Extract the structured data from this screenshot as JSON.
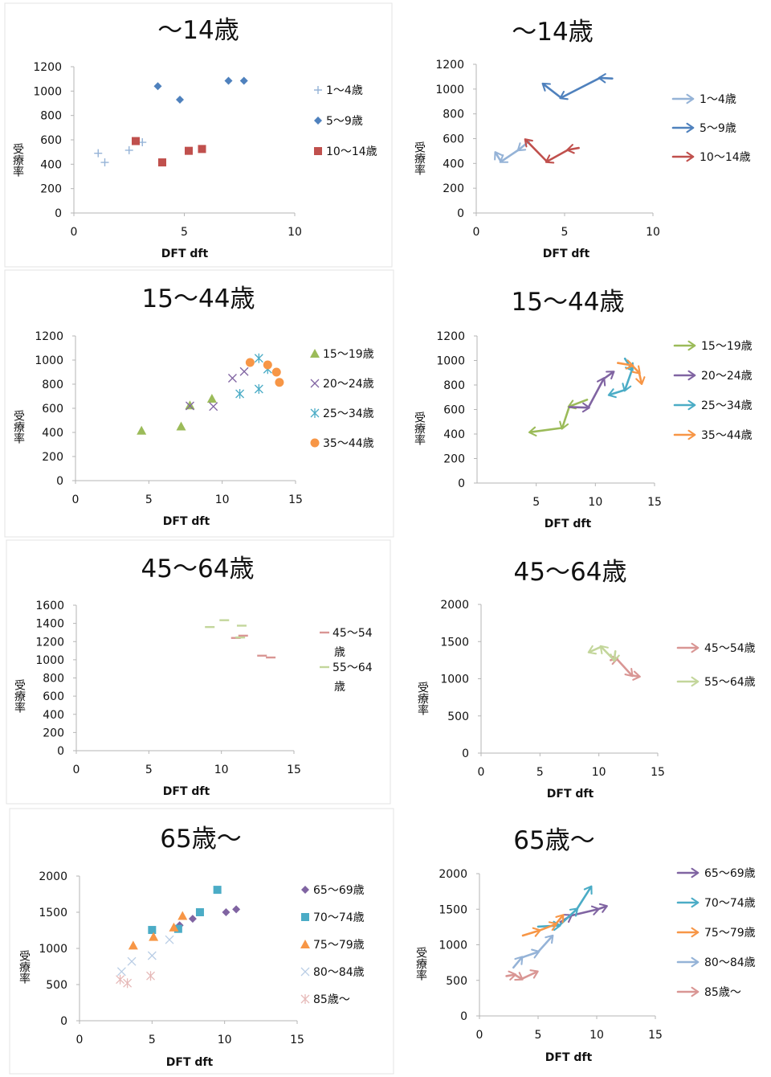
{
  "chart_data": [
    {
      "type": "scatter",
      "title": "～14歳",
      "xlabel": "DFT dft",
      "ylabel": "受療率",
      "xlim": [
        0,
        10
      ],
      "xticks": [
        0,
        5,
        10
      ],
      "ylim": [
        0,
        1200
      ],
      "yticks": [
        0,
        200,
        400,
        600,
        800,
        1000,
        1200
      ],
      "series": [
        {
          "name": "1～4歳",
          "color": "#95b3d7",
          "marker": "plus",
          "points": [
            [
              1.1,
              490
            ],
            [
              1.4,
              415
            ],
            [
              2.5,
              515
            ],
            [
              3.1,
              580
            ]
          ]
        },
        {
          "name": "5～9歳",
          "color": "#4f81bd",
          "marker": "diamond",
          "points": [
            [
              3.8,
              1040
            ],
            [
              4.8,
              930
            ],
            [
              7.0,
              1085
            ],
            [
              7.7,
              1085
            ]
          ]
        },
        {
          "name": "10～14歳",
          "color": "#c0504d",
          "marker": "square",
          "points": [
            [
              2.8,
              590
            ],
            [
              4.0,
              415
            ],
            [
              5.2,
              510
            ],
            [
              5.8,
              525
            ]
          ]
        }
      ]
    },
    {
      "type": "line",
      "title": "～14歳",
      "xlabel": "DFT dft",
      "ylabel": "受療率",
      "xlim": [
        0,
        10
      ],
      "xticks": [
        0,
        5,
        10
      ],
      "ylim": [
        0,
        1200
      ],
      "yticks": [
        0,
        200,
        400,
        600,
        800,
        1000,
        1200
      ],
      "series": [
        {
          "name": "1～4歳",
          "color": "#95b3d7",
          "marker": "arrow",
          "points": [
            [
              3.0,
              580
            ],
            [
              2.4,
              510
            ],
            [
              1.4,
              415
            ],
            [
              1.1,
              485
            ]
          ]
        },
        {
          "name": "5～9歳",
          "color": "#4f81bd",
          "marker": "arrow",
          "points": [
            [
              7.7,
              1085
            ],
            [
              7.0,
              1090
            ],
            [
              4.8,
              930
            ],
            [
              3.8,
              1040
            ]
          ]
        },
        {
          "name": "10～14歳",
          "color": "#c0504d",
          "marker": "arrow",
          "points": [
            [
              5.8,
              525
            ],
            [
              5.2,
              510
            ],
            [
              4.0,
              415
            ],
            [
              2.8,
              590
            ]
          ]
        }
      ]
    },
    {
      "type": "scatter",
      "title": "15～44歳",
      "xlabel": "DFT dft",
      "ylabel": "受療率",
      "xlim": [
        0,
        15
      ],
      "xticks": [
        0,
        5,
        10,
        15
      ],
      "ylim": [
        0,
        1200
      ],
      "yticks": [
        0,
        200,
        400,
        600,
        800,
        1000,
        1200
      ],
      "series": [
        {
          "name": "15～19歳",
          "color": "#9bbb59",
          "marker": "triangle",
          "points": [
            [
              4.5,
              415
            ],
            [
              7.2,
              450
            ],
            [
              7.8,
              625
            ],
            [
              9.3,
              680
            ]
          ]
        },
        {
          "name": "20～24歳",
          "color": "#8064a2",
          "marker": "cross",
          "points": [
            [
              7.8,
              620
            ],
            [
              9.4,
              615
            ],
            [
              10.7,
              850
            ],
            [
              11.5,
              905
            ]
          ]
        },
        {
          "name": "25～34歳",
          "color": "#4bacc6",
          "marker": "star",
          "points": [
            [
              11.2,
              720
            ],
            [
              12.5,
              760
            ],
            [
              13.1,
              925
            ],
            [
              12.5,
              1015
            ]
          ]
        },
        {
          "name": "35～44歳",
          "color": "#f79646",
          "marker": "circle",
          "points": [
            [
              11.9,
              980
            ],
            [
              13.1,
              960
            ],
            [
              13.7,
              900
            ],
            [
              13.9,
              815
            ]
          ]
        }
      ]
    },
    {
      "type": "line",
      "title": "15～44歳",
      "xlabel": "DFT dft",
      "ylabel": "受療率",
      "xlim": [
        0,
        15
      ],
      "xticks": [
        5,
        10,
        15
      ],
      "ylim": [
        0,
        1200
      ],
      "yticks": [
        0,
        200,
        400,
        600,
        800,
        1000,
        1200
      ],
      "series": [
        {
          "name": "15～19歳",
          "color": "#9bbb59",
          "marker": "arrow",
          "points": [
            [
              9.3,
              680
            ],
            [
              7.8,
              625
            ],
            [
              7.2,
              450
            ],
            [
              4.5,
              415
            ]
          ]
        },
        {
          "name": "20～24歳",
          "color": "#8064a2",
          "marker": "arrow",
          "points": [
            [
              7.8,
              620
            ],
            [
              9.4,
              615
            ],
            [
              10.7,
              850
            ],
            [
              11.5,
              905
            ]
          ]
        },
        {
          "name": "25～34歳",
          "color": "#4bacc6",
          "marker": "arrow",
          "points": [
            [
              12.5,
              1015
            ],
            [
              13.1,
              925
            ],
            [
              12.5,
              760
            ],
            [
              11.2,
              720
            ]
          ]
        },
        {
          "name": "35～44歳",
          "color": "#f79646",
          "marker": "arrow",
          "points": [
            [
              11.9,
              980
            ],
            [
              13.1,
              960
            ],
            [
              13.7,
              900
            ],
            [
              13.9,
              815
            ]
          ]
        }
      ]
    },
    {
      "type": "scatter",
      "title": "45～64歳",
      "xlabel": "DFT dft",
      "ylabel": "受療率",
      "xlim": [
        0,
        15
      ],
      "xticks": [
        0,
        5,
        10,
        15
      ],
      "ylim": [
        0,
        1600
      ],
      "yticks": [
        0,
        200,
        400,
        600,
        800,
        1000,
        1200,
        1400,
        1600
      ],
      "series": [
        {
          "name": "45～54歳",
          "color": "#d99694",
          "marker": "dash",
          "points": [
            [
              11.0,
              1240
            ],
            [
              11.5,
              1265
            ],
            [
              12.8,
              1045
            ],
            [
              13.4,
              1025
            ]
          ]
        },
        {
          "name": "55～64歳",
          "color": "#c3d69b",
          "marker": "dash",
          "points": [
            [
              9.2,
              1360
            ],
            [
              10.2,
              1435
            ],
            [
              11.3,
              1245
            ],
            [
              11.4,
              1375
            ]
          ]
        }
      ]
    },
    {
      "type": "line",
      "title": "45～64歳",
      "xlabel": "DFT dft",
      "ylabel": "受療率",
      "xlim": [
        0,
        15
      ],
      "xticks": [
        0,
        5,
        10,
        15
      ],
      "ylim": [
        0,
        2000
      ],
      "yticks": [
        0,
        500,
        1000,
        1500,
        2000
      ],
      "series": [
        {
          "name": "45～54歳",
          "color": "#d99694",
          "marker": "arrow",
          "points": [
            [
              11.0,
              1250
            ],
            [
              11.5,
              1270
            ],
            [
              12.8,
              1045
            ],
            [
              13.4,
              1030
            ]
          ]
        },
        {
          "name": "55～64歳",
          "color": "#c3d69b",
          "marker": "arrow",
          "points": [
            [
              11.4,
              1370
            ],
            [
              11.3,
              1250
            ],
            [
              10.2,
              1430
            ],
            [
              9.2,
              1360
            ]
          ]
        }
      ]
    },
    {
      "type": "scatter",
      "title": "65歳～",
      "xlabel": "DFT dft",
      "ylabel": "受療率",
      "xlim": [
        0,
        15
      ],
      "xticks": [
        0,
        5,
        10,
        15
      ],
      "ylim": [
        0,
        2000
      ],
      "yticks": [
        0,
        500,
        1000,
        1500,
        2000
      ],
      "series": [
        {
          "name": "65～69歳",
          "color": "#8064a2",
          "marker": "diamond",
          "points": [
            [
              6.9,
              1320
            ],
            [
              7.8,
              1410
            ],
            [
              10.1,
              1500
            ],
            [
              10.8,
              1540
            ]
          ]
        },
        {
          "name": "70～74歳",
          "color": "#4bacc6",
          "marker": "square",
          "points": [
            [
              5.0,
              1255
            ],
            [
              6.8,
              1270
            ],
            [
              8.3,
              1500
            ],
            [
              9.5,
              1810
            ]
          ]
        },
        {
          "name": "75～79歳",
          "color": "#f79646",
          "marker": "triangle",
          "points": [
            [
              3.7,
              1040
            ],
            [
              5.1,
              1160
            ],
            [
              6.5,
              1290
            ],
            [
              7.1,
              1450
            ]
          ]
        },
        {
          "name": "80～84歳",
          "color": "#b9cde5",
          "marker": "cross",
          "points": [
            [
              2.9,
              680
            ],
            [
              3.6,
              820
            ],
            [
              5.0,
              900
            ],
            [
              6.2,
              1120
            ]
          ]
        },
        {
          "name": "85歳～",
          "color": "#e6b9b8",
          "marker": "star",
          "points": [
            [
              2.8,
              570
            ],
            [
              3.3,
              520
            ],
            [
              4.9,
              620
            ]
          ]
        }
      ]
    },
    {
      "type": "line",
      "title": "65歳～",
      "xlabel": "DFT dft",
      "ylabel": "受療率",
      "xlim": [
        0,
        15
      ],
      "xticks": [
        0,
        5,
        10,
        15
      ],
      "ylim": [
        0,
        2000
      ],
      "yticks": [
        0,
        500,
        1000,
        1500,
        2000
      ],
      "series": [
        {
          "name": "65～69歳",
          "color": "#8064a2",
          "marker": "arrow",
          "points": [
            [
              6.9,
              1320
            ],
            [
              7.8,
              1410
            ],
            [
              10.1,
              1500
            ],
            [
              10.8,
              1540
            ]
          ]
        },
        {
          "name": "70～74歳",
          "color": "#4bacc6",
          "marker": "arrow",
          "points": [
            [
              5.0,
              1255
            ],
            [
              6.8,
              1270
            ],
            [
              8.3,
              1500
            ],
            [
              9.5,
              1810
            ]
          ]
        },
        {
          "name": "75～79歳",
          "color": "#f79646",
          "marker": "arrow",
          "points": [
            [
              3.7,
              1130
            ],
            [
              5.1,
              1200
            ],
            [
              6.5,
              1290
            ],
            [
              7.1,
              1410
            ]
          ]
        },
        {
          "name": "80～84歳",
          "color": "#95b3d7",
          "marker": "arrow",
          "points": [
            [
              2.9,
              680
            ],
            [
              3.6,
              820
            ],
            [
              5.0,
              900
            ],
            [
              6.2,
              1120
            ]
          ]
        },
        {
          "name": "85歳～",
          "color": "#d99694",
          "marker": "arrow",
          "points": [
            [
              2.3,
              560
            ],
            [
              3.0,
              580
            ],
            [
              3.6,
              520
            ],
            [
              4.9,
              620
            ]
          ]
        }
      ]
    }
  ]
}
